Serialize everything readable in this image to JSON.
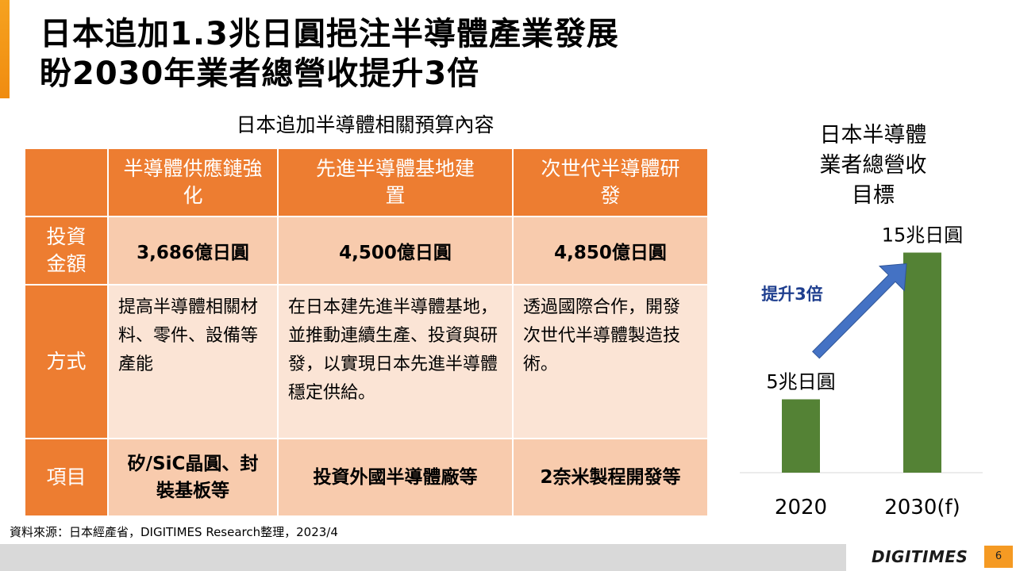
{
  "slide": {
    "title_line1": "日本追加1.3兆日圓挹注半導體產業發展",
    "title_line2": "盼2030年業者總營收提升3倍",
    "table_caption": "日本追加半導體相關預算內容",
    "source": "資料來源：日本經產省，DIGITIMES Research整理，2023/4",
    "logo": "DIGITIMES",
    "page_number": "6"
  },
  "table": {
    "headers": [
      "半導體供應鏈強化",
      "先進半導體基地建置",
      "次世代半導體研發"
    ],
    "rows": [
      {
        "label": "投資金額",
        "cells": [
          "3,686億日圓",
          "4,500億日圓",
          "4,850億日圓"
        ]
      },
      {
        "label": "方式",
        "cells": [
          "提高半導體相關材料、零件、設備等產能",
          "在日本建先進半導體基地，並推動連續生產、投資與研發，以實現日本先進半導體穩定供給。",
          "透過國際合作，開發次世代半導體製造技術。"
        ]
      },
      {
        "label": "項目",
        "cells": [
          "矽/SiC晶圓、封裝基板等",
          "投資外國半導體廠等",
          "2奈米製程開發等"
        ]
      }
    ]
  },
  "chart_data": {
    "type": "bar",
    "title": "日本半導體業者總營收目標",
    "categories": [
      "2020",
      "2030(f)"
    ],
    "values": [
      5,
      15
    ],
    "data_labels": [
      "5兆日圓",
      "15兆日圓"
    ],
    "annotation": "提升3倍",
    "ylim": [
      0,
      16
    ],
    "colors": {
      "bar": "#548235",
      "arrow": "#4472c4",
      "annotation": "#1f3f8f"
    },
    "grid": false
  }
}
